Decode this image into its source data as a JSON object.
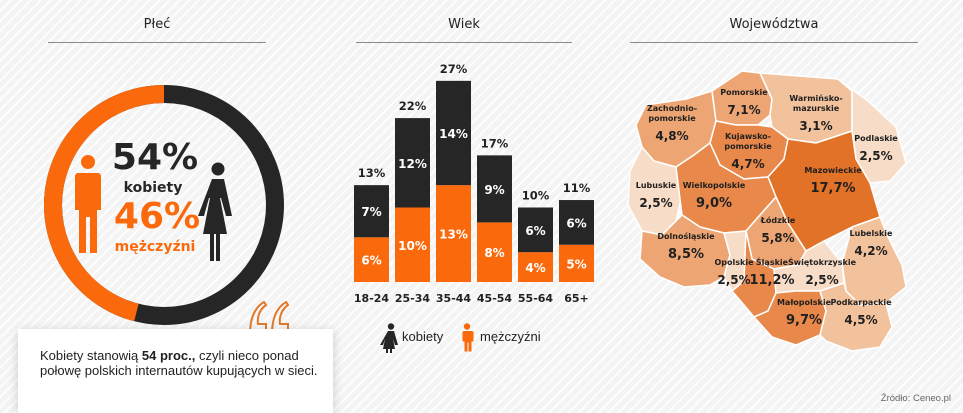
{
  "sections": {
    "gender": "Płeć",
    "age": "Wiek",
    "regions": "Województwa"
  },
  "colors": {
    "orange": "#fa6a0c",
    "dark": "#262626",
    "region_scale": [
      "#f7ddc8",
      "#f2c29d",
      "#eda673",
      "#e8884a",
      "#e27228"
    ]
  },
  "gender": {
    "women_percent": "54%",
    "women_label": "kobiety",
    "men_percent": "46%",
    "men_label": "mężczyźni",
    "women_value": 54,
    "men_value": 46
  },
  "chart_data": [
    {
      "type": "bar",
      "stacked": true,
      "title": "Wiek",
      "categories": [
        "18-24",
        "25-34",
        "35-44",
        "45-54",
        "55-64",
        "65+"
      ],
      "totals": [
        13,
        22,
        27,
        17,
        10,
        11
      ],
      "totals_labels": [
        "13%",
        "22%",
        "27%",
        "17%",
        "10%",
        "11%"
      ],
      "series": [
        {
          "name": "kobiety",
          "color": "#262626",
          "values": [
            7,
            12,
            14,
            9,
            6,
            6
          ],
          "labels": [
            "7%",
            "12%",
            "14%",
            "9%",
            "6%",
            "6%"
          ]
        },
        {
          "name": "mężczyźni",
          "color": "#fa6a0c",
          "values": [
            6,
            10,
            13,
            8,
            4,
            5
          ],
          "labels": [
            "6%",
            "10%",
            "13%",
            "8%",
            "4%",
            "5%"
          ]
        }
      ],
      "legend": "bottom",
      "grid": false
    },
    {
      "type": "pie",
      "title": "Płeć",
      "categories": [
        "kobiety",
        "mężczyźni"
      ],
      "values": [
        54,
        46
      ]
    }
  ],
  "legend": {
    "women": "kobiety",
    "men": "mężczyźni"
  },
  "regions": [
    {
      "name": "Pomorskie",
      "value": "7,1%"
    },
    {
      "name": "Zachodnio-pomorskie",
      "name_lines": [
        "Zachodnio-",
        "pomorskie"
      ],
      "value": "4,8%"
    },
    {
      "name": "Warmińsko-mazurskie",
      "name_lines": [
        "Warmińsko-",
        "mazurskie"
      ],
      "value": "3,1%"
    },
    {
      "name": "Podlaskie",
      "value": "2,5%"
    },
    {
      "name": "Kujawsko-pomorskie",
      "name_lines": [
        "Kujawsko-",
        "pomorskie"
      ],
      "value": "4,7%"
    },
    {
      "name": "Mazowieckie",
      "value": "17,7%"
    },
    {
      "name": "Lubuskie",
      "value": "2,5%"
    },
    {
      "name": "Wielkopolskie",
      "value": "9,0%"
    },
    {
      "name": "Łódzkie",
      "value": "5,8%"
    },
    {
      "name": "Lubelskie",
      "value": "4,2%"
    },
    {
      "name": "Dolnośląskie",
      "value": "8,5%"
    },
    {
      "name": "Opolskie",
      "value": "2,5%"
    },
    {
      "name": "Śląskie",
      "value": "11,2%"
    },
    {
      "name": "Świętokrzyskie",
      "value": "2,5%"
    },
    {
      "name": "Małopolskie",
      "value": "9,7%"
    },
    {
      "name": "Podkarpackie",
      "value": "4,5%"
    }
  ],
  "quote": {
    "text_before": "Kobiety stanowią ",
    "bold": "54 proc.,",
    "text_after": " czyli nieco ponad połowę polskich internautów kupujących w sieci."
  },
  "source": "Źródło: Ceneo.pl"
}
